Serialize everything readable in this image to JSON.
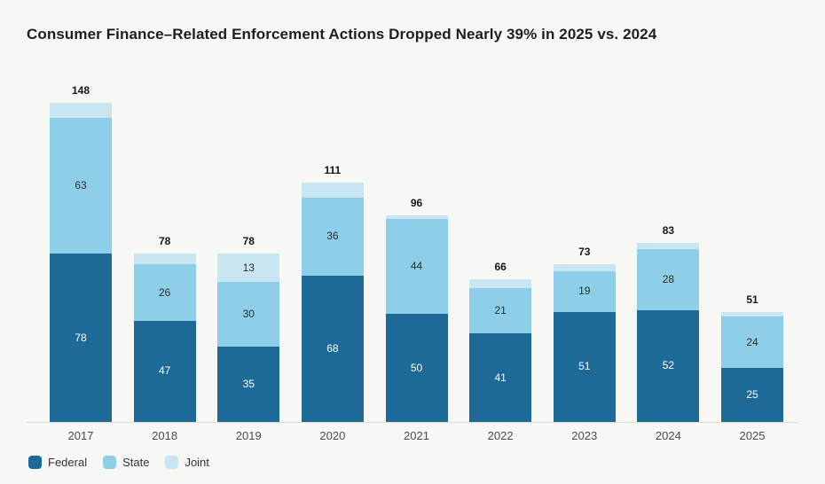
{
  "title": "Consumer Finance–Related Enforcement Actions Dropped Nearly 39% in 2025 vs. 2024",
  "colors": {
    "background": "#f7f7f4",
    "federal": "#1d6a99",
    "state": "#8dcfe9",
    "joint": "#c7e6f2",
    "axis_line": "#dcdcd8",
    "total_label": "#161616",
    "year_label": "#4b4b4b"
  },
  "chart_data": {
    "type": "bar",
    "stacked": true,
    "title": "Consumer Finance–Related Enforcement Actions Dropped Nearly 39% in 2025 vs. 2024",
    "categories": [
      "2017",
      "2018",
      "2019",
      "2020",
      "2021",
      "2022",
      "2023",
      "2024",
      "2025"
    ],
    "series": [
      {
        "name": "Federal",
        "color": "#1d6a99",
        "label_color": "#ffffff",
        "values": [
          78,
          47,
          35,
          68,
          50,
          41,
          51,
          52,
          25
        ]
      },
      {
        "name": "State",
        "color": "#8dcfe9",
        "label_color": "#2e2e2e",
        "values": [
          63,
          26,
          30,
          36,
          44,
          21,
          19,
          28,
          24
        ]
      },
      {
        "name": "Joint",
        "color": "#c7e6f2",
        "label_color": "#2e2e2e",
        "values": [
          7,
          5,
          13,
          7,
          2,
          4,
          3,
          3,
          2
        ]
      }
    ],
    "totals": [
      148,
      78,
      78,
      111,
      96,
      66,
      73,
      83,
      51
    ],
    "xlabel": "",
    "ylabel": "",
    "ylim": [
      0,
      148
    ],
    "grid": false,
    "value_label_threshold": 13,
    "legend_position": "bottom-left",
    "legend": [
      "Federal",
      "State",
      "Joint"
    ]
  }
}
